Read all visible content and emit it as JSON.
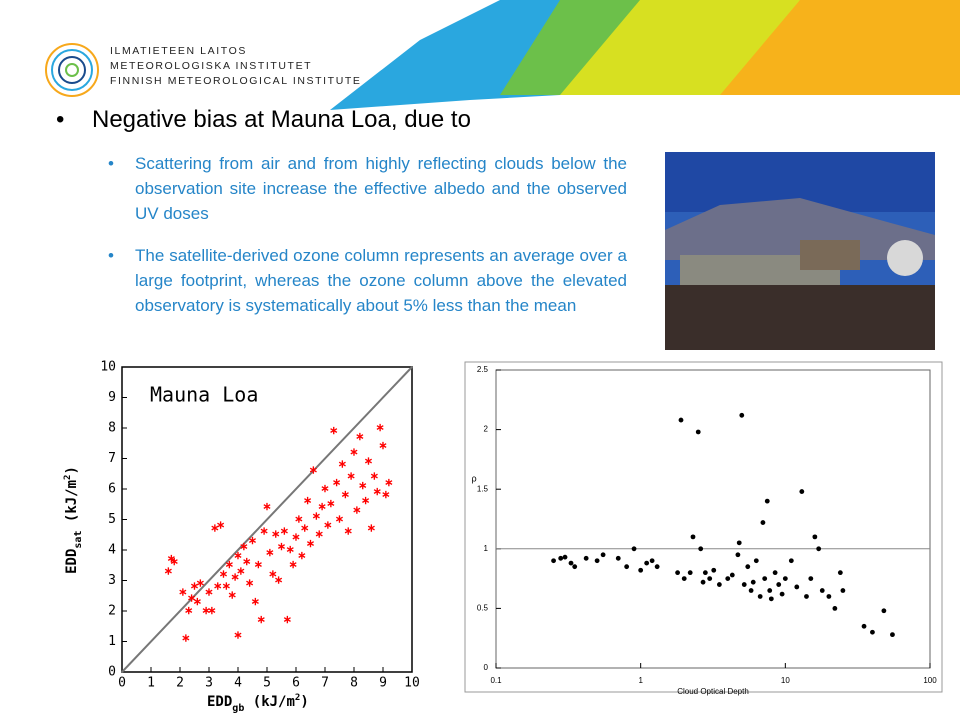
{
  "header": {
    "logo_lines": [
      "ILMATIETEEN LAITOS",
      "METEOROLOGISKA INSTITUTET",
      "FINNISH METEOROLOGICAL INSTITUTE"
    ]
  },
  "heading": "Negative bias at Mauna Loa, due to",
  "bullets": [
    "Scattering from air and from highly reflecting clouds below the observation site increase the effective albedo and the observed UV doses",
    "The satellite-derived ozone column represents an average over a large footprint, whereas the ozone column above the elevated observatory is systematically about 5% less than the mean"
  ],
  "chart_data": [
    {
      "type": "scatter",
      "annotation": "Mauna Loa",
      "xlabel": [
        "EDD",
        "gb",
        " (kJ/m",
        "2",
        ")"
      ],
      "ylabel": [
        "EDD",
        "sat",
        " (kJ/m",
        "2",
        ")"
      ],
      "color": "#ff0000",
      "identity_line": true,
      "xlim": [
        0,
        10
      ],
      "ylim": [
        0,
        10
      ],
      "xticks": [
        0,
        1,
        2,
        3,
        4,
        5,
        6,
        7,
        8,
        9,
        10
      ],
      "yticks": [
        0,
        1,
        2,
        3,
        4,
        5,
        6,
        7,
        8,
        9,
        10
      ],
      "x": [
        1.6,
        1.7,
        1.8,
        2.1,
        2.2,
        2.3,
        2.4,
        2.5,
        2.6,
        2.7,
        2.9,
        3.0,
        3.1,
        3.2,
        3.3,
        3.4,
        3.5,
        3.6,
        3.7,
        3.8,
        3.9,
        4.0,
        4.0,
        4.1,
        4.2,
        4.3,
        4.4,
        4.5,
        4.6,
        4.7,
        4.8,
        4.9,
        5.0,
        5.1,
        5.2,
        5.3,
        5.4,
        5.5,
        5.6,
        5.7,
        5.8,
        5.9,
        6.0,
        6.1,
        6.2,
        6.3,
        6.4,
        6.5,
        6.6,
        6.7,
        6.8,
        6.9,
        7.0,
        7.1,
        7.2,
        7.3,
        7.4,
        7.5,
        7.6,
        7.7,
        7.8,
        7.9,
        8.0,
        8.1,
        8.2,
        8.3,
        8.4,
        8.5,
        8.6,
        8.7,
        8.8,
        8.9,
        9.0,
        9.1,
        9.2
      ],
      "y": [
        3.3,
        3.7,
        3.6,
        2.6,
        1.1,
        2.0,
        2.4,
        2.8,
        2.3,
        2.9,
        2.0,
        2.6,
        2.0,
        4.7,
        2.8,
        4.8,
        3.2,
        2.8,
        3.5,
        2.5,
        3.1,
        1.2,
        3.8,
        3.3,
        4.1,
        3.6,
        2.9,
        4.3,
        2.3,
        3.5,
        1.7,
        4.6,
        5.4,
        3.9,
        3.2,
        4.5,
        3.0,
        4.1,
        4.6,
        1.7,
        4.0,
        3.5,
        4.4,
        5.0,
        3.8,
        4.7,
        5.6,
        4.2,
        6.6,
        5.1,
        4.5,
        5.4,
        6.0,
        4.8,
        5.5,
        7.9,
        6.2,
        5.0,
        6.8,
        5.8,
        4.6,
        6.4,
        7.2,
        5.3,
        7.7,
        6.1,
        5.6,
        6.9,
        4.7,
        6.4,
        5.9,
        8.0,
        7.4,
        5.8,
        6.2
      ]
    },
    {
      "type": "scatter",
      "log_x": true,
      "xlabel": "Cloud Optical Depth",
      "ylabel": "ρ",
      "color": "#000000",
      "reference_line": 1,
      "xlim": [
        0.1,
        100
      ],
      "ylim": [
        0,
        2.5
      ],
      "xticks": [
        0.1,
        1,
        10,
        100
      ],
      "yticks": [
        0,
        0.5,
        1,
        1.5,
        2,
        2.5
      ],
      "x": [
        0.25,
        0.28,
        0.3,
        0.33,
        0.35,
        0.42,
        0.5,
        0.55,
        0.7,
        0.8,
        0.9,
        1.0,
        1.1,
        1.2,
        1.3,
        1.8,
        1.9,
        2.0,
        2.2,
        2.3,
        2.5,
        2.6,
        2.7,
        2.8,
        3.0,
        3.2,
        3.5,
        4,
        4.3,
        4.7,
        4.8,
        5.0,
        5.2,
        5.5,
        5.8,
        6.0,
        6.3,
        6.7,
        7.0,
        7.2,
        7.5,
        7.8,
        8,
        8.5,
        9,
        9.5,
        10,
        11,
        12,
        13,
        14,
        15,
        16,
        17,
        18,
        20,
        22,
        24,
        25,
        35,
        40,
        48,
        55
      ],
      "y": [
        0.9,
        0.92,
        0.93,
        0.88,
        0.85,
        0.92,
        0.9,
        0.95,
        0.92,
        0.85,
        1.0,
        0.82,
        0.88,
        0.9,
        0.85,
        0.8,
        2.08,
        0.75,
        0.8,
        1.1,
        1.98,
        1.0,
        0.72,
        0.8,
        0.75,
        0.82,
        0.7,
        0.75,
        0.78,
        0.95,
        1.05,
        2.12,
        0.7,
        0.85,
        0.65,
        0.72,
        0.9,
        0.6,
        1.22,
        0.75,
        1.4,
        0.65,
        0.58,
        0.8,
        0.7,
        0.62,
        0.75,
        0.9,
        0.68,
        1.48,
        0.6,
        0.75,
        1.1,
        1.0,
        0.65,
        0.6,
        0.5,
        0.8,
        0.65,
        0.35,
        0.3,
        0.48,
        0.28
      ]
    }
  ]
}
